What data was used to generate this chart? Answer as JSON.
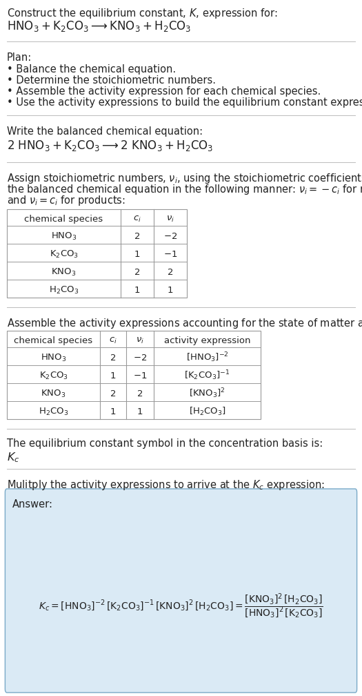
{
  "bg_color": "#ffffff",
  "text_color": "#222222",
  "separator_color": "#bbbbbb",
  "table_border_color": "#999999",
  "answer_box_color": "#daeaf5",
  "answer_box_border": "#7aaac8",
  "font_size": 10.5,
  "small_font_size": 9.5,
  "eq_font_size": 12,
  "title_line1": "Construct the equilibrium constant, $K$, expression for:",
  "title_eq": "$\\mathrm{HNO_3 + K_2CO_3 \\longrightarrow KNO_3 + H_2CO_3}$",
  "plan_header": "Plan:",
  "plan_items": [
    "• Balance the chemical equation.",
    "• Determine the stoichiometric numbers.",
    "• Assemble the activity expression for each chemical species.",
    "• Use the activity expressions to build the equilibrium constant expression."
  ],
  "balanced_header": "Write the balanced chemical equation:",
  "balanced_eq": "$\\mathrm{2\\ HNO_3 + K_2CO_3 \\longrightarrow 2\\ KNO_3 + H_2CO_3}$",
  "stoich_intro_parts": [
    "Assign stoichiometric numbers, $\\nu_i$, using the stoichiometric coefficients, $c_i$, from",
    "the balanced chemical equation in the following manner: $\\nu_i = -c_i$ for reactants",
    "and $\\nu_i = c_i$ for products:"
  ],
  "stoich_headers": [
    "chemical species",
    "$c_i$",
    "$\\nu_i$"
  ],
  "stoich_rows": [
    [
      "$\\mathrm{HNO_3}$",
      "2",
      "$-2$"
    ],
    [
      "$\\mathrm{K_2CO_3}$",
      "1",
      "$-1$"
    ],
    [
      "$\\mathrm{KNO_3}$",
      "2",
      "$2$"
    ],
    [
      "$\\mathrm{H_2CO_3}$",
      "1",
      "$1$"
    ]
  ],
  "activity_intro": "Assemble the activity expressions accounting for the state of matter and $\\nu_i$:",
  "activity_headers": [
    "chemical species",
    "$c_i$",
    "$\\nu_i$",
    "activity expression"
  ],
  "activity_rows": [
    [
      "$\\mathrm{HNO_3}$",
      "2",
      "$-2$",
      "$[\\mathrm{HNO_3}]^{-2}$"
    ],
    [
      "$\\mathrm{K_2CO_3}$",
      "1",
      "$-1$",
      "$[\\mathrm{K_2CO_3}]^{-1}$"
    ],
    [
      "$\\mathrm{KNO_3}$",
      "2",
      "$2$",
      "$[\\mathrm{KNO_3}]^{2}$"
    ],
    [
      "$\\mathrm{H_2CO_3}$",
      "1",
      "$1$",
      "$[\\mathrm{H_2CO_3}]$"
    ]
  ],
  "kc_basis_text": "The equilibrium constant symbol in the concentration basis is:",
  "kc_symbol": "$K_c$",
  "multiply_text": "Mulitply the activity expressions to arrive at the $K_c$ expression:",
  "answer_label": "Answer:",
  "answer_eq": "$K_c = [\\mathrm{HNO_3}]^{-2}\\,[\\mathrm{K_2CO_3}]^{-1}\\,[\\mathrm{KNO_3}]^{2}\\,[\\mathrm{H_2CO_3}] = \\dfrac{[\\mathrm{KNO_3}]^{2}\\,[\\mathrm{H_2CO_3}]}{[\\mathrm{HNO_3}]^{2}\\,[\\mathrm{K_2CO_3}]}$"
}
